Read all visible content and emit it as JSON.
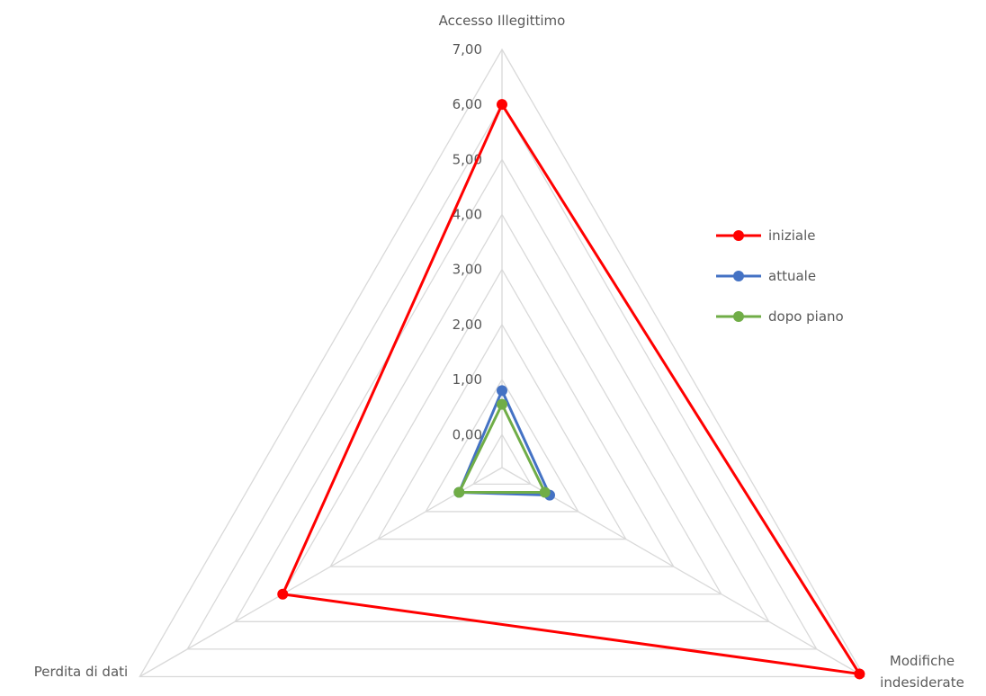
{
  "chart_data": {
    "type": "radar",
    "title": "",
    "categories": [
      "Accesso Illegittimo",
      "Modifiche\nindesiderate",
      "Perdita di dati"
    ],
    "r_ticks": [
      "0,00",
      "1,00",
      "2,00",
      "3,00",
      "4,00",
      "5,00",
      "6,00",
      "7,00"
    ],
    "rlim": [
      -0.6,
      7
    ],
    "grid": true,
    "legend_position": "right",
    "series": [
      {
        "name": "iniziale",
        "color": "#ff0000",
        "values": [
          6.0,
          6.9,
          4.0
        ]
      },
      {
        "name": "attuale",
        "color": "#4472c4",
        "values": [
          0.8,
          0.4,
          0.3
        ]
      },
      {
        "name": "dopo piano",
        "color": "#70ad47",
        "values": [
          0.55,
          0.3,
          0.3
        ]
      }
    ]
  }
}
